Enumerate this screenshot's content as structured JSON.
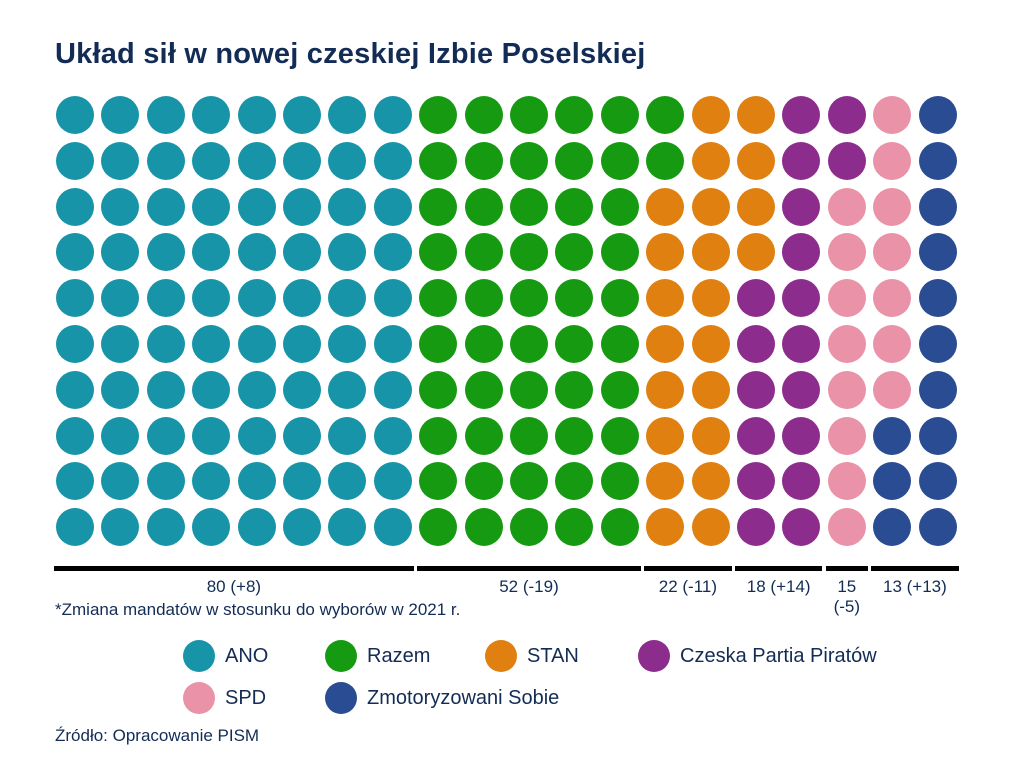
{
  "title": "Układ sił w nowej czeskiej Izbie Poselskiej",
  "footnote": "*Zmiana mandatów w stosunku do wyborów w 2021 r.",
  "source": "Źródło: Opracowanie PISM",
  "colors": {
    "text": "#132c55",
    "axis_line": "#000000",
    "background": "#ffffff"
  },
  "chart_data": {
    "type": "waffle-parliament",
    "title": "Układ sił w nowej czeskiej Izbie Poselskiej",
    "total_seats": 200,
    "grid": {
      "rows": 10,
      "cols": 20
    },
    "legend_position": "bottom",
    "parties": [
      {
        "name": "ANO",
        "seats": 80,
        "change": "+8",
        "label": "80 (+8)",
        "color": "#1794a7"
      },
      {
        "name": "Razem",
        "seats": 52,
        "change": "-19",
        "label": "52 (-19)",
        "color": "#169a11"
      },
      {
        "name": "STAN",
        "seats": 22,
        "change": "-11",
        "label": "22 (-11)",
        "color": "#df8011"
      },
      {
        "name": "Czeska Partia Piratów",
        "seats": 18,
        "change": "+14",
        "label": "18 (+14)",
        "color": "#8c2d8e"
      },
      {
        "name": "SPD",
        "seats": 15,
        "change": "-5",
        "label": "15 (-5)",
        "color": "#e992a8"
      },
      {
        "name": "Zmotoryzowani Sobie",
        "seats": 13,
        "change": "+13",
        "label": "13 (+13)",
        "color": "#2a4c92"
      }
    ],
    "row_composition": [
      [
        8,
        6,
        2,
        2,
        1,
        1
      ],
      [
        8,
        6,
        2,
        2,
        1,
        1
      ],
      [
        8,
        5,
        3,
        1,
        2,
        1
      ],
      [
        8,
        5,
        3,
        1,
        2,
        1
      ],
      [
        8,
        5,
        2,
        2,
        2,
        1
      ],
      [
        8,
        5,
        2,
        2,
        2,
        1
      ],
      [
        8,
        5,
        2,
        2,
        2,
        1
      ],
      [
        8,
        5,
        2,
        2,
        1,
        2
      ],
      [
        8,
        5,
        2,
        2,
        1,
        2
      ],
      [
        8,
        5,
        2,
        2,
        1,
        2
      ]
    ]
  },
  "legend": {
    "rows": [
      [
        0,
        1,
        2,
        3
      ],
      [
        4,
        5
      ]
    ]
  }
}
